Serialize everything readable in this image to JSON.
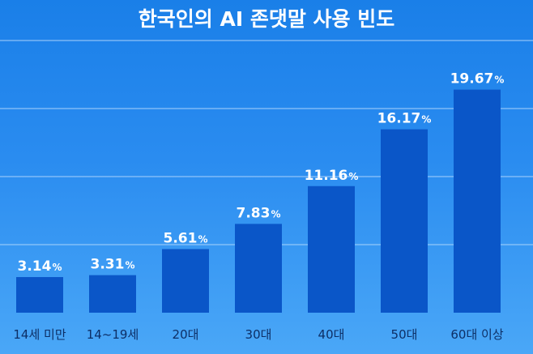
{
  "chart_data": {
    "type": "bar",
    "title": "한국인의 AI 존댓말 사용 빈도",
    "categories": [
      "14세 미만",
      "14~19세",
      "20대",
      "30대",
      "40대",
      "50대",
      "60대 이상"
    ],
    "values": [
      3.14,
      3.31,
      5.61,
      7.83,
      11.16,
      16.17,
      19.67
    ],
    "value_labels": [
      "3.14",
      "3.31",
      "5.61",
      "7.83",
      "11.16",
      "16.17",
      "19.67"
    ],
    "unit": "%",
    "ylim": [
      0,
      24
    ],
    "grid": true,
    "legend": "none",
    "colors": {
      "bar": "#0a56c8",
      "grid": "#a9d2fb",
      "text": "#ffffff",
      "category_text": "#0d2f66"
    }
  }
}
